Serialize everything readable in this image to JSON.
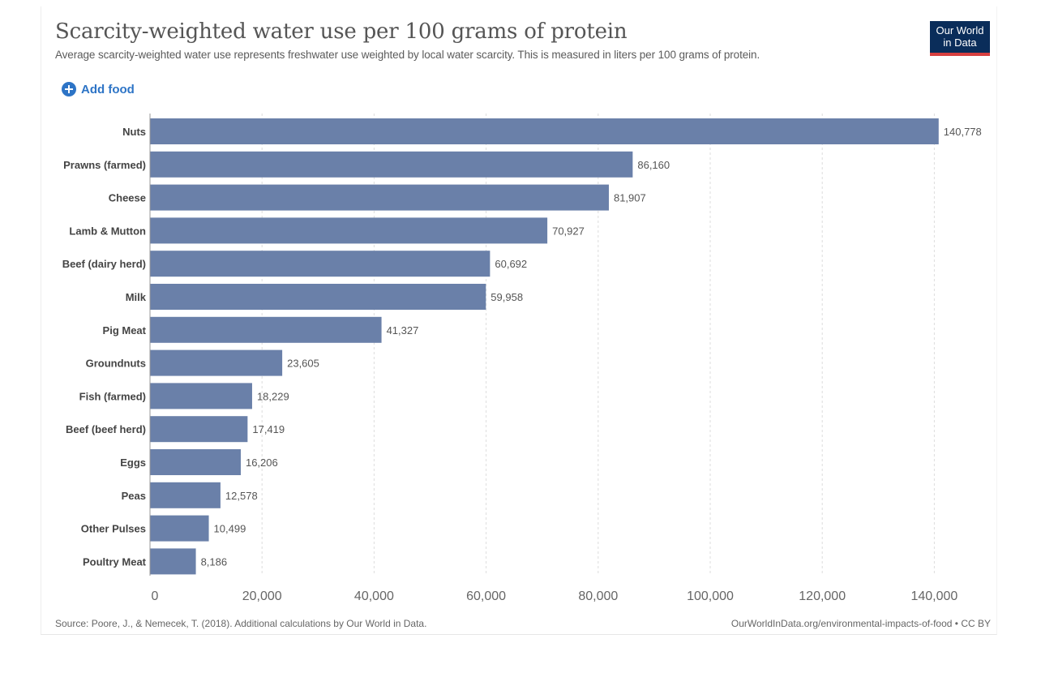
{
  "header": {
    "title": "Scarcity-weighted water use per 100 grams of protein",
    "subtitle": "Average scarcity-weighted water use represents freshwater use weighted by local water scarcity. This is measured in liters per 100 grams of protein.",
    "logo_line1": "Our World",
    "logo_line2": "in Data",
    "logo_bg": "#0a2d5a",
    "logo_accent": "#d73f3f"
  },
  "controls": {
    "add_food_label": "Add food",
    "add_food_icon": "plus-circle-icon",
    "accent": "#2d74c6"
  },
  "footer": {
    "source": "Source: Poore, J., & Nemecek, T. (2018). Additional calculations by Our World in Data.",
    "attribution": "OurWorldInData.org/environmental-impacts-of-food • CC BY"
  },
  "chart_data": {
    "type": "bar",
    "orientation": "horizontal",
    "bar_color": "#6a80a9",
    "categories": [
      "Nuts",
      "Prawns (farmed)",
      "Cheese",
      "Lamb & Mutton",
      "Beef (dairy herd)",
      "Milk",
      "Pig Meat",
      "Groundnuts",
      "Fish (farmed)",
      "Beef (beef herd)",
      "Eggs",
      "Peas",
      "Other Pulses",
      "Poultry Meat"
    ],
    "values": [
      140778,
      86160,
      81907,
      70927,
      60692,
      59958,
      41327,
      23605,
      18229,
      17419,
      16206,
      12578,
      10499,
      8186
    ],
    "value_labels": [
      "140,778",
      "86,160",
      "81,907",
      "70,927",
      "60,692",
      "59,958",
      "41,327",
      "23,605",
      "18,229",
      "17,419",
      "16,206",
      "12,578",
      "10,499",
      "8,186"
    ],
    "xlim": [
      0,
      140000
    ],
    "xticks": [
      0,
      20000,
      40000,
      60000,
      80000,
      100000,
      120000,
      140000
    ],
    "xtick_labels": [
      "0",
      "20,000",
      "40,000",
      "60,000",
      "80,000",
      "100,000",
      "120,000",
      "140,000"
    ],
    "grid": true
  }
}
